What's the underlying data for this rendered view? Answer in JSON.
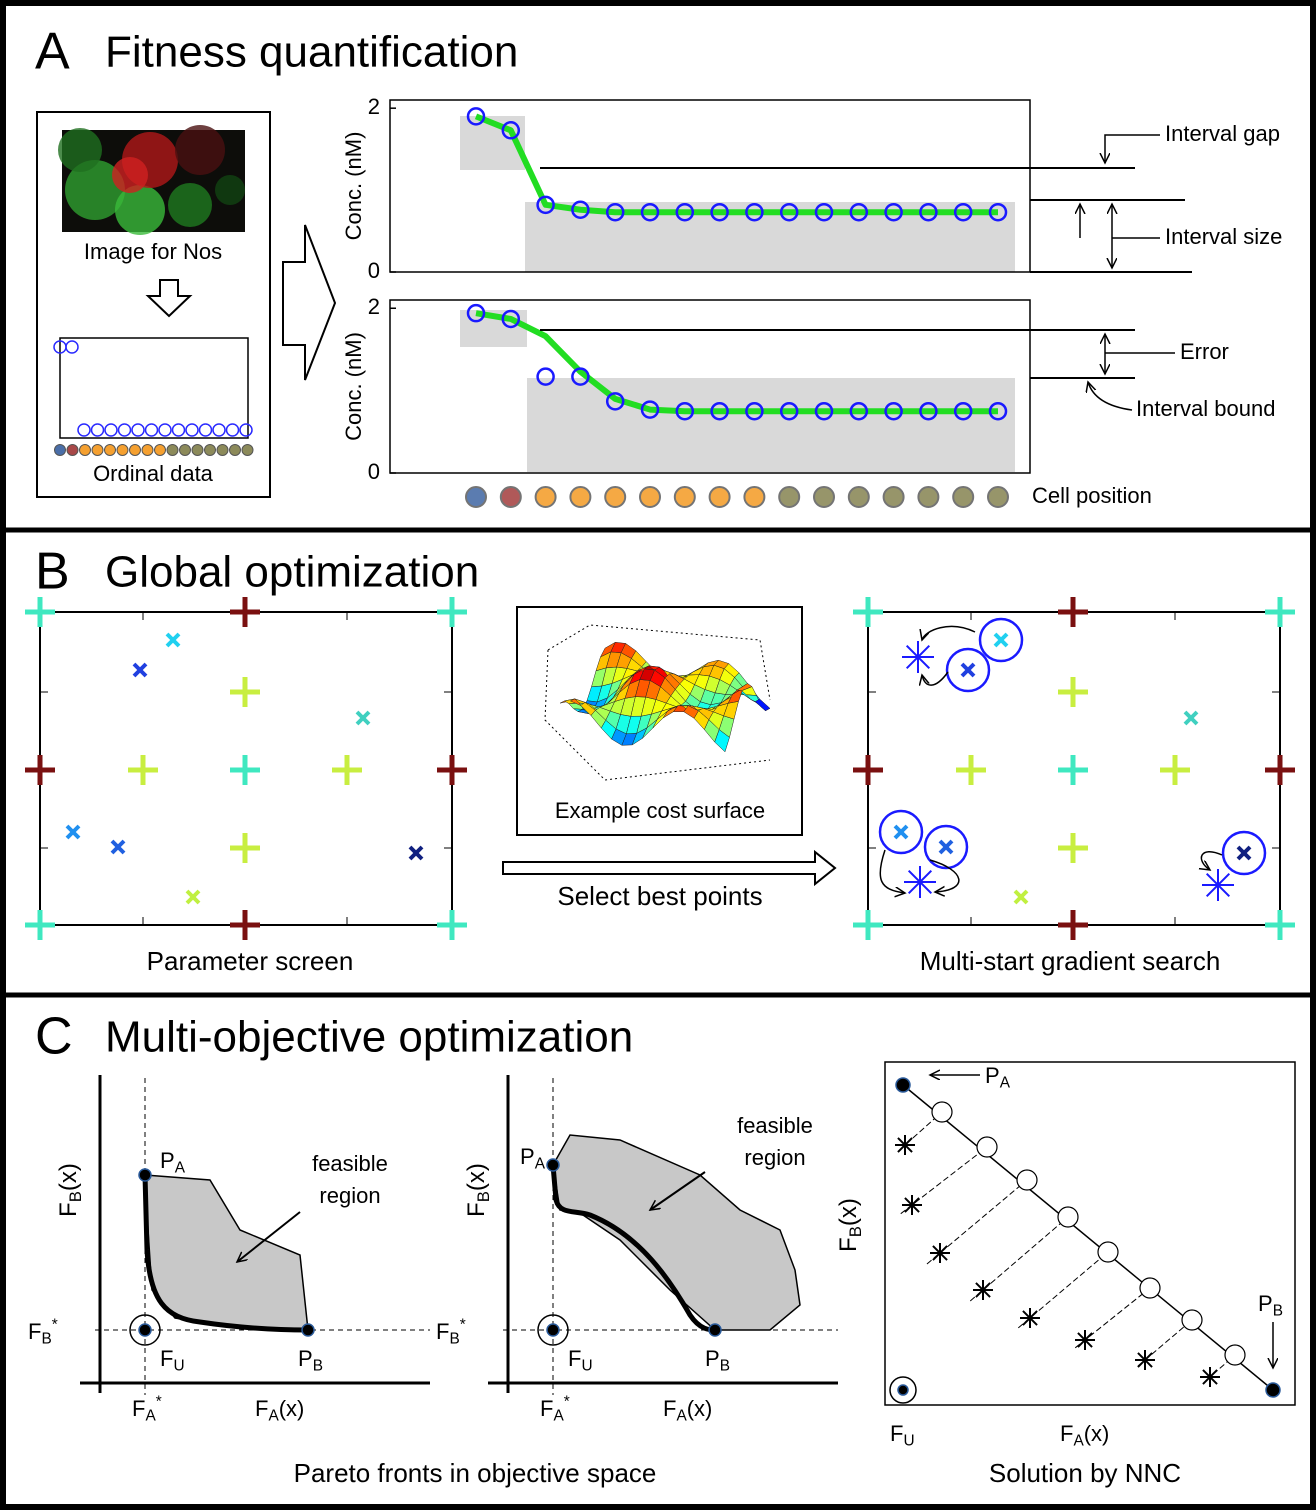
{
  "panel_a": {
    "letter": "A",
    "title": "Fitness quantification",
    "image_label": "Image for Nos",
    "ordinal_label": "Ordinal data",
    "plots": [
      {
        "y_label": "Conc. (nM)",
        "ylim": [
          0,
          2.1
        ],
        "yticks": [
          0,
          2
        ],
        "points": [
          1.9,
          1.73,
          0.82,
          0.76,
          0.73,
          0.73,
          0.73,
          0.73,
          0.73,
          0.73,
          0.73,
          0.73,
          0.73,
          0.73,
          0.73,
          0.73
        ],
        "line": [
          1.9,
          1.73,
          0.82,
          0.76,
          0.73,
          0.73,
          0.73,
          0.73,
          0.73,
          0.73,
          0.73,
          0.73,
          0.73,
          0.73,
          0.73,
          0.73
        ]
      },
      {
        "y_label": "Conc. (nM)",
        "ylim": [
          0,
          2.1
        ],
        "yticks": [
          0,
          2
        ],
        "points": [
          1.94,
          1.87,
          1.17,
          1.17,
          0.87,
          0.77,
          0.75,
          0.75,
          0.75,
          0.75,
          0.75,
          0.75,
          0.75,
          0.75,
          0.75,
          0.75
        ],
        "line": [
          1.94,
          1.87,
          1.66,
          1.23,
          0.9,
          0.77,
          0.75,
          0.75,
          0.75,
          0.75,
          0.75,
          0.75,
          0.75,
          0.75,
          0.75,
          0.75
        ]
      }
    ],
    "x_label": "Cell position",
    "annotations": {
      "interval_gap": "Interval gap",
      "interval_size": "Interval size",
      "error": "Error",
      "interval_bound": "Interval bound"
    }
  },
  "panel_b": {
    "letter": "B",
    "title": "Global optimization",
    "surface_label": "Example cost surface",
    "arrow_label": "Select best points",
    "left_caption": "Parameter screen",
    "right_caption": "Multi-start gradient search"
  },
  "panel_c": {
    "letter": "C",
    "title": "Multi-objective optimization",
    "feasible": [
      "feasible",
      "region"
    ],
    "symbols": {
      "pa": {
        "main": "P",
        "sub": "A"
      },
      "pb": {
        "main": "P",
        "sub": "B"
      },
      "fu": {
        "main": "F",
        "sub": "U"
      },
      "fa_star": {
        "main": "F",
        "sub": "A",
        "sup": "*"
      },
      "fb_star": {
        "main": "F",
        "sub": "B",
        "sup": "*"
      },
      "fa_x": {
        "main": "F",
        "sub": "A",
        "tail": "(x)"
      },
      "fb_x": {
        "main": "F",
        "sub": "B",
        "tail": "(x)"
      }
    },
    "left_caption": "Pareto fronts in objective space",
    "right_caption": "Solution by NNC"
  }
}
